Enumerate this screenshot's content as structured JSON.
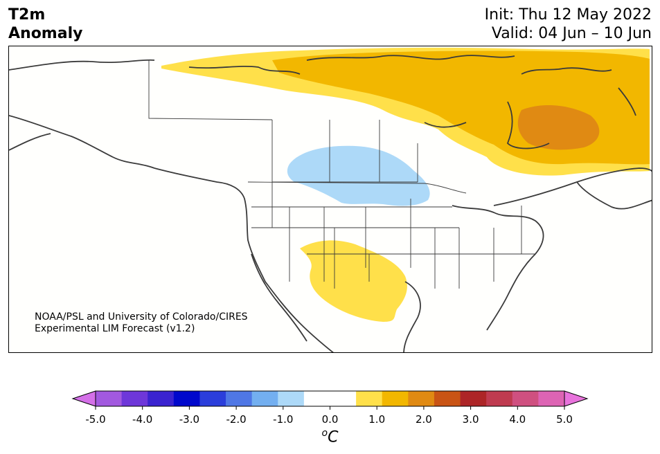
{
  "header": {
    "variable_line1": "T2m",
    "variable_line2": "Anomaly",
    "init": "Init: Thu 12 May 2022",
    "valid": "Valid: 04 Jun – 10 Jun"
  },
  "map": {
    "credit_line1": "NOAA/PSL and University of Colorado/CIRES",
    "credit_line2": "Experimental LIM Forecast (v1.2)",
    "background_color": "#fffffd",
    "line_color": "#3a3a3a"
  },
  "colorbar": {
    "unit_base": "C",
    "unit_sup": "o",
    "colors": [
      "#d470e8",
      "#a259df",
      "#6e37d9",
      "#3a23d0",
      "#0008cc",
      "#2b3edb",
      "#4f77e5",
      "#73aff0",
      "#add9f8",
      "#ffffff",
      "#ffffff",
      "#ffe04a",
      "#f2b700",
      "#e08a13",
      "#c95415",
      "#ad2527",
      "#bf3b50",
      "#cf5080",
      "#dd64b4",
      "#e873dc"
    ],
    "ticks": [
      "-5.0",
      "-4.0",
      "-3.0",
      "-2.0",
      "-1.0",
      "0.0",
      "1.0",
      "2.0",
      "3.0",
      "4.0",
      "5.0"
    ]
  }
}
